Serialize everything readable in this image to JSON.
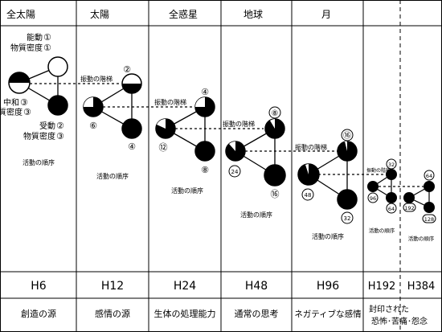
{
  "columns": [
    {
      "id": "all-sun",
      "header": "全太陽",
      "h_label": "H6",
      "footer": [
        "創造の源"
      ]
    },
    {
      "id": "sun",
      "header": "太陽",
      "h_label": "H12",
      "footer": [
        "感情の源"
      ]
    },
    {
      "id": "all-planet",
      "header": "全惑星",
      "h_label": "H24",
      "footer": [
        "生体の処理能力"
      ]
    },
    {
      "id": "earth",
      "header": "地球",
      "h_label": "H48",
      "footer": [
        "通常の思考"
      ]
    },
    {
      "id": "moon",
      "header": "月",
      "h_label": "H96",
      "footer": [
        "ネガティブな感情"
      ]
    },
    {
      "id": "h192",
      "header": "",
      "h_label": "H192",
      "footer": [
        "封印された",
        "恐怖･苦痛･怨念"
      ]
    },
    {
      "id": "h384",
      "header": "",
      "h_label": "H384",
      "footer": []
    }
  ],
  "labels": {
    "active": "能動",
    "density": "物質密度",
    "neutral": "中和",
    "passive": "受動",
    "steps": "振動の階梯",
    "order": "活動の順序"
  },
  "numbers": {
    "c1_active": "①",
    "c1_density_top": "①",
    "c1_neutral": "③",
    "c1_density_mid": "③",
    "c1_passive": "②",
    "c1_density_bot": "③",
    "c2_top": "②",
    "c2_left": "⑥",
    "c2_bot": "④",
    "c3_top": "④",
    "c3_left": "⑫",
    "c3_bot": "⑧",
    "c4_top": "⑧",
    "c4_left": "24",
    "c4_bot": "⑯",
    "c5_top": "⑯",
    "c5_left": "48",
    "c5_bot": "32",
    "c6_top": "32",
    "c6_left": "96",
    "c6_bot": "64",
    "c7_top": "64",
    "c7_left": "192",
    "c7_bot": "128"
  },
  "colors": {
    "ink": "#000000",
    "paper": "#ffffff"
  }
}
